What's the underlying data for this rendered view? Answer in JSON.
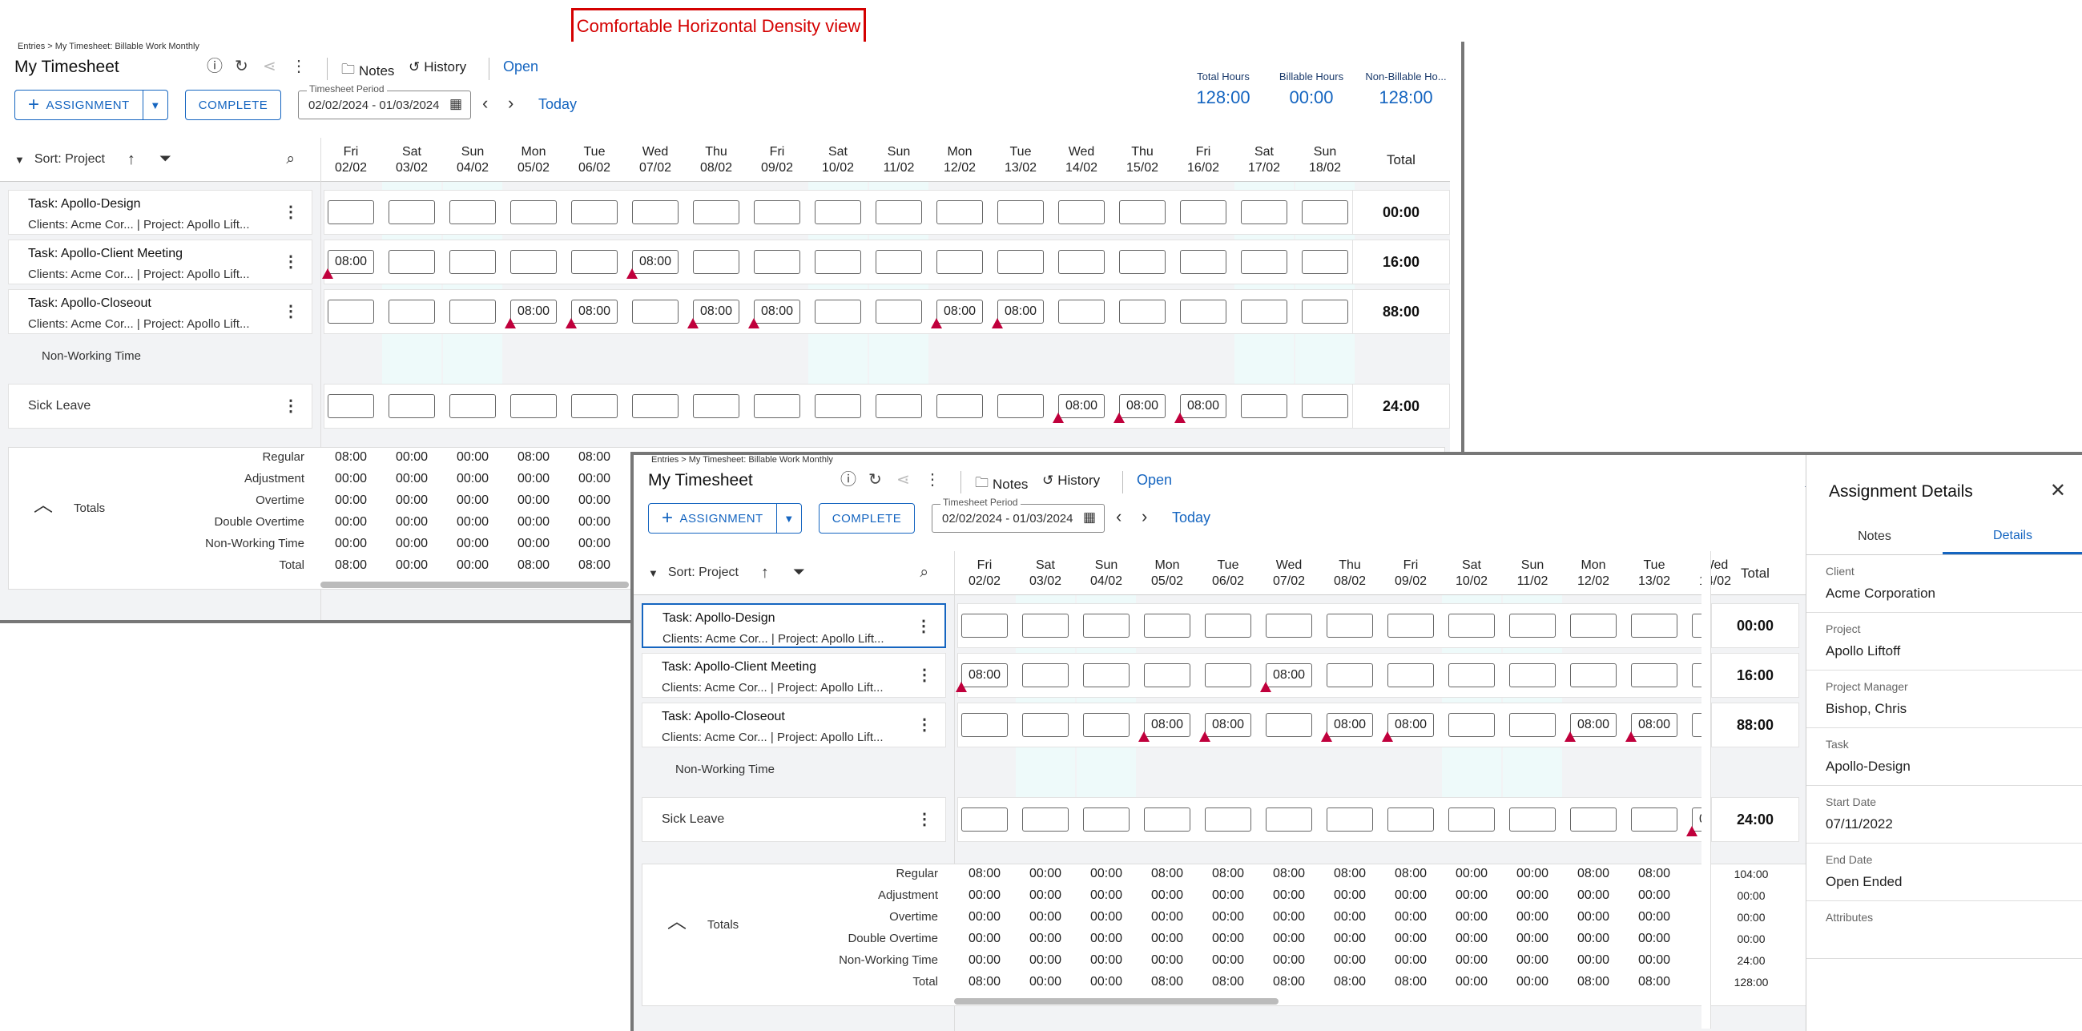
{
  "banner": "Comfortable Horizontal Density view",
  "breadcrumb": "Entries > My Timesheet: Billable Work Monthly",
  "title": "My Timesheet",
  "toolbar": {
    "notes": "Notes",
    "history": "History",
    "status": "Open"
  },
  "buttons": {
    "assignment": "ASSIGNMENT",
    "complete": "COMPLETE",
    "today": "Today"
  },
  "period": {
    "label": "Timesheet Period",
    "value": "02/02/2024 - 01/03/2024"
  },
  "summary": {
    "total_label": "Total Hours",
    "total": "128:00",
    "billable_label": "Billable Hours",
    "billable": "00:00",
    "nonbillable_label": "Non-Billable Ho...",
    "nonbillable": "128:00"
  },
  "sort_label": "Sort: Project",
  "total_header": "Total",
  "days": [
    {
      "d": "Fri",
      "n": "02/02"
    },
    {
      "d": "Sat",
      "n": "03/02"
    },
    {
      "d": "Sun",
      "n": "04/02"
    },
    {
      "d": "Mon",
      "n": "05/02"
    },
    {
      "d": "Tue",
      "n": "06/02"
    },
    {
      "d": "Wed",
      "n": "07/02"
    },
    {
      "d": "Thu",
      "n": "08/02"
    },
    {
      "d": "Fri",
      "n": "09/02"
    },
    {
      "d": "Sat",
      "n": "10/02"
    },
    {
      "d": "Sun",
      "n": "11/02"
    },
    {
      "d": "Mon",
      "n": "12/02"
    },
    {
      "d": "Tue",
      "n": "13/02"
    },
    {
      "d": "Wed",
      "n": "14/02"
    },
    {
      "d": "Thu",
      "n": "15/02"
    },
    {
      "d": "Fri",
      "n": "16/02"
    },
    {
      "d": "Sat",
      "n": "17/02"
    },
    {
      "d": "Sun",
      "n": "18/02"
    }
  ],
  "tasks": [
    {
      "name": "Task: Apollo-Design",
      "meta": "Clients: Acme Cor...   |  Project: Apollo Lift...",
      "total": "00:00",
      "cells": [
        "",
        "",
        "",
        "",
        "",
        "",
        "",
        "",
        "",
        "",
        "",
        "",
        "",
        "",
        "",
        "",
        ""
      ]
    },
    {
      "name": "Task: Apollo-Client Meeting",
      "meta": "Clients: Acme Cor...   |  Project: Apollo Lift...",
      "total": "16:00",
      "cells": [
        "08:00",
        "",
        "",
        "",
        "",
        "08:00",
        "",
        "",
        "",
        "",
        "",
        "",
        "",
        "",
        "",
        "",
        ""
      ]
    },
    {
      "name": "Task: Apollo-Closeout",
      "meta": "Clients: Acme Cor...   |  Project: Apollo Lift...",
      "total": "88:00",
      "cells": [
        "",
        "",
        "",
        "08:00",
        "08:00",
        "",
        "08:00",
        "08:00",
        "",
        "",
        "08:00",
        "08:00",
        "",
        "",
        "",
        "",
        ""
      ]
    }
  ],
  "nonworking_label": "Non-Working Time",
  "sick": {
    "name": "Sick Leave",
    "total": "24:00",
    "cells": [
      "",
      "",
      "",
      "",
      "",
      "",
      "",
      "",
      "",
      "",
      "",
      "",
      "08:00",
      "08:00",
      "08:00",
      "",
      ""
    ]
  },
  "totals": {
    "label": "Totals",
    "rows": [
      {
        "label": "Regular",
        "values": [
          "08:00",
          "00:00",
          "00:00",
          "08:00",
          "08:00",
          "08:00",
          "08:00",
          "08:00",
          "00:00",
          "00:00",
          "08:00",
          "08:00"
        ],
        "total": "104:00"
      },
      {
        "label": "Adjustment",
        "values": [
          "00:00",
          "00:00",
          "00:00",
          "00:00",
          "00:00",
          "00:00",
          "00:00",
          "00:00",
          "00:00",
          "00:00",
          "00:00",
          "00:00"
        ],
        "total": "00:00"
      },
      {
        "label": "Overtime",
        "values": [
          "00:00",
          "00:00",
          "00:00",
          "00:00",
          "00:00",
          "00:00",
          "00:00",
          "00:00",
          "00:00",
          "00:00",
          "00:00",
          "00:00"
        ],
        "total": "00:00"
      },
      {
        "label": "Double Overtime",
        "values": [
          "00:00",
          "00:00",
          "00:00",
          "00:00",
          "00:00",
          "00:00",
          "00:00",
          "00:00",
          "00:00",
          "00:00",
          "00:00",
          "00:00"
        ],
        "total": "00:00"
      },
      {
        "label": "Non-Working Time",
        "values": [
          "00:00",
          "00:00",
          "00:00",
          "00:00",
          "00:00",
          "00:00",
          "00:00",
          "00:00",
          "00:00",
          "00:00",
          "00:00",
          "00:00"
        ],
        "total": "24:00"
      },
      {
        "label": "Total",
        "values": [
          "08:00",
          "00:00",
          "00:00",
          "08:00",
          "08:00",
          "08:00",
          "08:00",
          "08:00",
          "00:00",
          "00:00",
          "08:00",
          "08:00"
        ],
        "total": "128:00"
      }
    ]
  },
  "panel": {
    "title": "Assignment Details",
    "tab_notes": "Notes",
    "tab_details": "Details",
    "fields": [
      {
        "label": "Client",
        "value": "Acme Corporation"
      },
      {
        "label": "Project",
        "value": "Apollo Liftoff"
      },
      {
        "label": "Project Manager",
        "value": "Bishop, Chris"
      },
      {
        "label": "Task",
        "value": "Apollo-Design"
      },
      {
        "label": "Start Date",
        "value": "07/11/2022"
      },
      {
        "label": "End Date",
        "value": "Open Ended"
      },
      {
        "label": "Attributes",
        "value": ""
      }
    ]
  },
  "colors": {
    "accent": "#1565c0",
    "warning": "#c0003c",
    "banner": "#d40000"
  }
}
